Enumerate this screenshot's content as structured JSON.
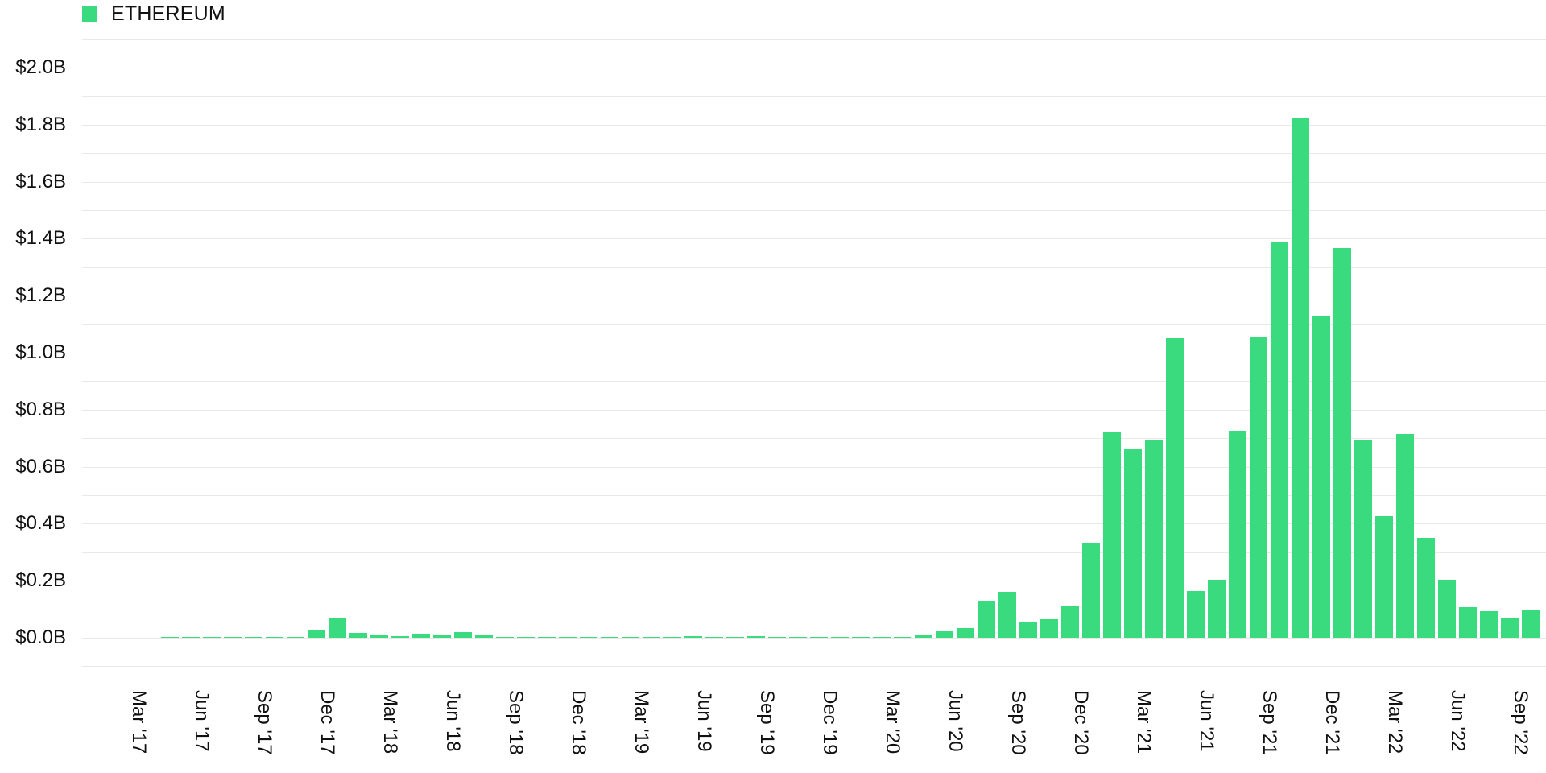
{
  "legend": {
    "label": "ETHEREUM",
    "color": "#3ADB7F"
  },
  "chart_data": {
    "type": "bar",
    "title": "",
    "xlabel": "",
    "ylabel": "",
    "ylim": [
      -0.1,
      2.1
    ],
    "grid": true,
    "legend_position": "top-left",
    "y_ticks": [
      "$0.0B",
      "$0.2B",
      "$0.4B",
      "$0.6B",
      "$0.8B",
      "$1.0B",
      "$1.2B",
      "$1.4B",
      "$1.6B",
      "$1.8B",
      "$2.0B"
    ],
    "y_tick_values": [
      0.0,
      0.2,
      0.4,
      0.6,
      0.8,
      1.0,
      1.2,
      1.4,
      1.6,
      1.8,
      2.0
    ],
    "x_tick_labels": [
      "Mar '17",
      "Jun '17",
      "Sep '17",
      "Dec '17",
      "Mar '18",
      "Jun '18",
      "Sep '18",
      "Dec '18",
      "Mar '19",
      "Jun '19",
      "Sep '19",
      "Dec '19",
      "Mar '20",
      "Jun '20",
      "Sep '20",
      "Dec '20",
      "Mar '21",
      "Jun '21",
      "Sep '21",
      "Dec '21",
      "Mar '22",
      "Jun '22",
      "Sep '22"
    ],
    "categories": [
      "Mar '17",
      "Apr '17",
      "May '17",
      "Jun '17",
      "Jul '17",
      "Aug '17",
      "Sep '17",
      "Oct '17",
      "Nov '17",
      "Dec '17",
      "Jan '18",
      "Feb '18",
      "Mar '18",
      "Apr '18",
      "May '18",
      "Jun '18",
      "Jul '18",
      "Aug '18",
      "Sep '18",
      "Oct '18",
      "Nov '18",
      "Dec '18",
      "Jan '19",
      "Feb '19",
      "Mar '19",
      "Apr '19",
      "May '19",
      "Jun '19",
      "Jul '19",
      "Aug '19",
      "Sep '19",
      "Oct '19",
      "Nov '19",
      "Dec '19",
      "Jan '20",
      "Feb '20",
      "Mar '20",
      "Apr '20",
      "May '20",
      "Jun '20",
      "Jul '20",
      "Aug '20",
      "Sep '20",
      "Oct '20",
      "Nov '20",
      "Dec '20",
      "Jan '21",
      "Feb '21",
      "Mar '21",
      "Apr '21",
      "May '21",
      "Jun '21",
      "Jul '21",
      "Aug '21",
      "Sep '21",
      "Oct '21",
      "Nov '21",
      "Dec '21",
      "Jan '22",
      "Feb '22",
      "Mar '22",
      "Apr '22",
      "May '22",
      "Jun '22",
      "Jul '22",
      "Aug '22",
      "Sep '22",
      "Oct '22"
    ],
    "series": [
      {
        "name": "ETHEREUM",
        "unit": "USD billions",
        "color": "#3ADB7F",
        "values": [
          0.0,
          0.0,
          0.001,
          0.003,
          0.001,
          0.003,
          0.003,
          0.002,
          0.003,
          0.025,
          0.068,
          0.018,
          0.009,
          0.006,
          0.014,
          0.009,
          0.02,
          0.008,
          0.004,
          0.003,
          0.003,
          0.002,
          0.001,
          0.002,
          0.003,
          0.003,
          0.004,
          0.005,
          0.004,
          0.003,
          0.007,
          0.003,
          0.003,
          0.002,
          0.002,
          0.004,
          0.004,
          0.004,
          0.01,
          0.023,
          0.034,
          0.127,
          0.16,
          0.055,
          0.066,
          0.109,
          0.334,
          0.722,
          0.662,
          0.692,
          1.052,
          0.165,
          0.203,
          0.725,
          1.054,
          1.391,
          1.822,
          1.13,
          1.366,
          0.691,
          0.426,
          0.716,
          0.349,
          0.203,
          0.108,
          0.092,
          0.072,
          0.099
        ]
      }
    ]
  }
}
